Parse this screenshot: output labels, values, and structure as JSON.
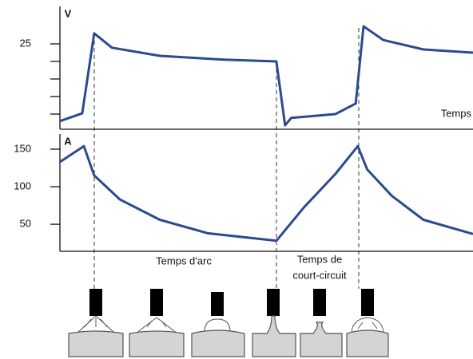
{
  "chart_data": [
    {
      "type": "line",
      "y_label": "V",
      "x_label": "Temps",
      "x": [
        0,
        5.4,
        8.3,
        12.6,
        24.2,
        39.7,
        52.4,
        54.5,
        56,
        66.7,
        71.6,
        73.5,
        78.3,
        88,
        100
      ],
      "series": [
        {
          "color": "#2b4a8f",
          "values": [
            3,
            5.2,
            28,
            23.9,
            21.6,
            20.5,
            20,
            1.8,
            3.9,
            5,
            8,
            30,
            26.1,
            23.4,
            22.5
          ]
        }
      ],
      "xlim": [
        0,
        100
      ],
      "ylim": [
        0,
        35
      ],
      "yticks": [
        25
      ],
      "minor_yticks": [
        5,
        10,
        15,
        20
      ]
    },
    {
      "type": "line",
      "y_label": "A",
      "x": [
        0,
        5.8,
        8.3,
        14.5,
        24.2,
        35.8,
        52.4,
        59,
        66.7,
        72.1,
        74.4,
        80.3,
        88,
        100
      ],
      "series": [
        {
          "color": "#2b4a8f",
          "values": [
            133,
            154,
            115,
            83,
            56,
            38,
            28,
            72,
            117,
            154,
            123,
            88,
            56,
            37
          ]
        }
      ],
      "xlim": [
        0,
        100
      ],
      "ylim": [
        14,
        168
      ],
      "yticks": [
        50,
        100,
        150
      ]
    }
  ],
  "phases": {
    "arc": "Temps d'arc",
    "short_circuit": [
      "Temps de",
      "court-circuit"
    ]
  }
}
